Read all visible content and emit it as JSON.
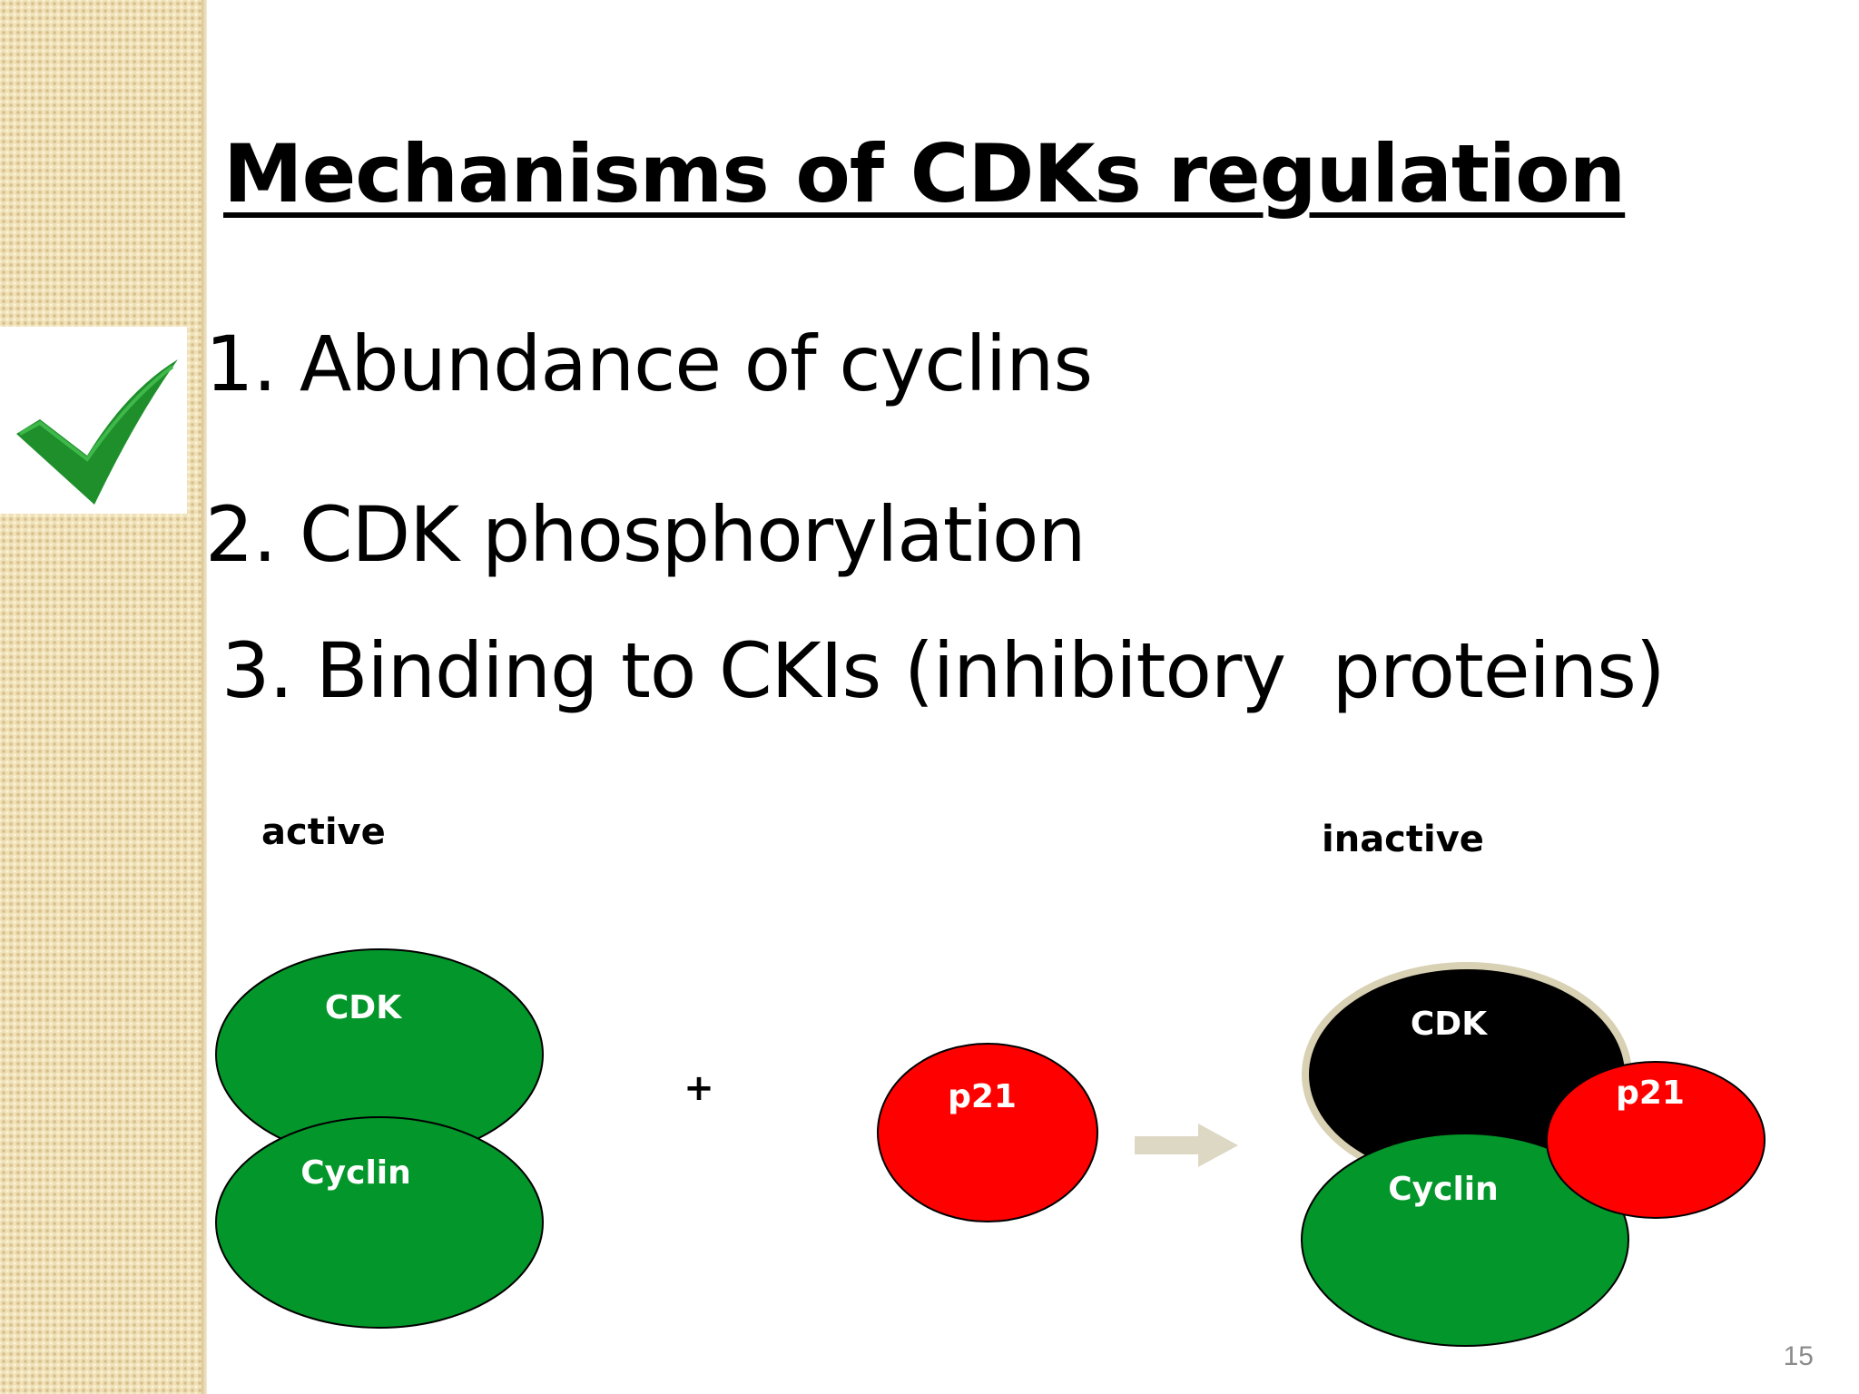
{
  "slide": {
    "title": "Mechanisms of CDKs regulation",
    "items": [
      "1. Abundance of cyclins",
      "2. CDK phosphorylation",
      "3. Binding to CKIs (inhibitory  proteins)"
    ],
    "checkmark_icon": "checkmark-icon",
    "page_number": "15"
  },
  "diagram": {
    "left_label": "active",
    "right_label": "inactive",
    "plus": "+",
    "cdk": "CDK",
    "cyclin": "Cyclin",
    "p21": "p21",
    "colors": {
      "green": "#03962a",
      "red": "#ff0000",
      "black": "#000000",
      "arrow": "#ddd8c4",
      "halo": "#d8d1b4"
    }
  }
}
